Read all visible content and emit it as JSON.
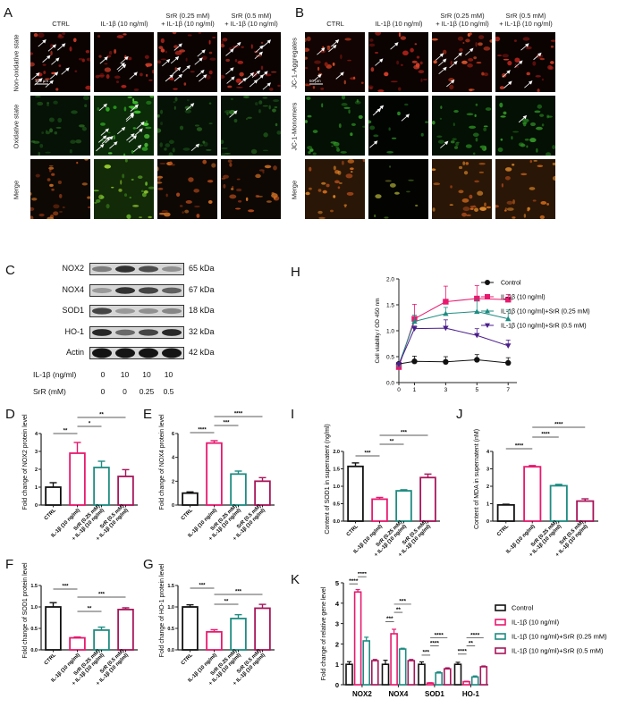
{
  "panels": {
    "A": {
      "label": "A",
      "columns": [
        "CTRL",
        "IL-1β (10 ng/ml)",
        "SrR (0.25 mM)\n+ IL-1β (10 ng/ml)",
        "SrR (0.5 mM)\n+ IL-1β (10 ng/ml)"
      ],
      "rows": [
        "Non-oxidative state",
        "Oxidative state",
        "Merge"
      ],
      "scale_bar": "100 μm"
    },
    "B": {
      "label": "B",
      "columns": [
        "CTRL",
        "IL-1β (10 ng/ml)",
        "SrR (0.25 mM)\n+ IL-1β (10 ng/ml)",
        "SrR (0.5 mM)\n+ IL-1β (10 ng/ml)"
      ],
      "rows": [
        "JC-1-Aggregates",
        "JC-1-Monomers",
        "Merge"
      ],
      "scale_bar": "50 μm"
    },
    "C": {
      "label": "C",
      "proteins": [
        {
          "name": "NOX2",
          "kda": "65 kDa",
          "intensity": [
            0.45,
            0.85,
            0.7,
            0.35
          ]
        },
        {
          "name": "NOX4",
          "kda": "67 kDa",
          "intensity": [
            0.3,
            0.85,
            0.75,
            0.6
          ]
        },
        {
          "name": "SOD1",
          "kda": "18 kDa",
          "intensity": [
            0.75,
            0.3,
            0.35,
            0.4
          ]
        },
        {
          "name": "HO-1",
          "kda": "32 kDa",
          "intensity": [
            0.9,
            0.55,
            0.75,
            0.9
          ]
        },
        {
          "name": "Actin",
          "kda": "42 kDa",
          "intensity": [
            1,
            1,
            1,
            1
          ]
        }
      ],
      "conditions": [
        {
          "label": "IL-1β (ng/ml)",
          "values": [
            "0",
            "10",
            "10",
            "10"
          ]
        },
        {
          "label": "SrR (mM)",
          "values": [
            "0",
            "0",
            "0.25",
            "0.5"
          ]
        }
      ]
    },
    "H": {
      "label": "H"
    },
    "D": {
      "label": "D"
    },
    "E": {
      "label": "E"
    },
    "F": {
      "label": "F"
    },
    "G": {
      "label": "G"
    },
    "I": {
      "label": "I"
    },
    "J": {
      "label": "J"
    },
    "K": {
      "label": "K"
    }
  },
  "colors": {
    "control": "#111111",
    "il1b": "#e8196e",
    "srr025": "#1e8c82",
    "srr05": "#a8155a",
    "srr05_line": "#4b1d8c"
  },
  "bar_categories": [
    "CTRL",
    "IL-1β (10 ng/ml)",
    "SrR (0.25 mM)\n+ IL-1β (10 ng/ml)",
    "SrR (0.5 mM)\n+ IL-1β (10 ng/ml)"
  ],
  "chart_data": [
    {
      "id": "H",
      "type": "line",
      "title": "",
      "xlabel": "",
      "ylabel": "Cell viability / OD 450 nm",
      "x": [
        0,
        1,
        3,
        5,
        7
      ],
      "xticks": [
        0,
        1,
        3,
        5,
        7
      ],
      "ylim": [
        0,
        2.0
      ],
      "yticks": [
        0.0,
        0.5,
        1.0,
        1.5,
        2.0
      ],
      "legend_position": "right",
      "series": [
        {
          "name": "Control",
          "marker": "circle",
          "values": [
            0.36,
            0.41,
            0.4,
            0.44,
            0.38
          ],
          "errors": [
            0.03,
            0.1,
            0.1,
            0.1,
            0.1
          ]
        },
        {
          "name": "IL-1β (10 ng/ml)",
          "marker": "square",
          "values": [
            0.3,
            1.23,
            1.56,
            1.62,
            1.6
          ],
          "errors": [
            0.03,
            0.28,
            0.3,
            0.25,
            0.1
          ]
        },
        {
          "name": "IL-1β (10 ng/ml)+SrR (0.25 mM)",
          "marker": "triangle-up",
          "values": [
            0.35,
            1.18,
            1.33,
            1.37,
            1.23
          ],
          "errors": [
            0.03,
            0.12,
            0.12,
            0.22,
            0.17
          ]
        },
        {
          "name": "IL-1β (10 ng/ml)+SrR (0.5 mM)",
          "marker": "triangle-down",
          "values": [
            0.35,
            1.04,
            1.05,
            0.91,
            0.71
          ],
          "errors": [
            0.03,
            0.05,
            0.16,
            0.13,
            0.11
          ]
        }
      ]
    },
    {
      "id": "D",
      "type": "bar",
      "ylabel": "Fold change of NOX2 protein level",
      "categories": [
        "CTRL",
        "IL-1β (10 ng/ml)",
        "SrR (0.25 mM) + IL-1β (10 ng/ml)",
        "SrR (0.5 mM) + IL-1β (10 ng/ml)"
      ],
      "values": [
        1.0,
        2.9,
        2.1,
        1.6
      ],
      "errors": [
        0.25,
        0.6,
        0.35,
        0.38
      ],
      "ylim": [
        0,
        4
      ],
      "yticks": [
        0,
        1,
        2,
        3,
        4
      ],
      "significance": [
        {
          "from": 0,
          "to": 1,
          "label": "**"
        },
        {
          "from": 1,
          "to": 2,
          "label": "*"
        },
        {
          "from": 1,
          "to": 3,
          "label": "**"
        }
      ]
    },
    {
      "id": "E",
      "type": "bar",
      "ylabel": "Fold change of NOX4 protein level",
      "categories": [
        "CTRL",
        "IL-1β (10 ng/ml)",
        "SrR (0.25 mM) + IL-1β (10 ng/ml)",
        "SrR (0.5 mM) + IL-1β (10 ng/ml)"
      ],
      "values": [
        1.0,
        5.2,
        2.6,
        2.0
      ],
      "errors": [
        0.1,
        0.2,
        0.25,
        0.3
      ],
      "ylim": [
        0,
        6
      ],
      "yticks": [
        0,
        2,
        4,
        6
      ],
      "significance": [
        {
          "from": 0,
          "to": 1,
          "label": "****"
        },
        {
          "from": 1,
          "to": 2,
          "label": "***"
        },
        {
          "from": 1,
          "to": 3,
          "label": "****"
        }
      ]
    },
    {
      "id": "F",
      "type": "bar",
      "ylabel": "Fold change of SOD1 protein level",
      "categories": [
        "CTRL",
        "IL-1β (10 ng/ml)",
        "SrR (0.25 mM) + IL-1β (10 ng/ml)",
        "SrR (0.5 mM) + IL-1β (10 ng/ml)"
      ],
      "values": [
        1.0,
        0.28,
        0.46,
        0.94
      ],
      "errors": [
        0.1,
        0.02,
        0.07,
        0.04
      ],
      "ylim": [
        0,
        1.5
      ],
      "yticks": [
        0.0,
        0.5,
        1.0,
        1.5
      ],
      "significance": [
        {
          "from": 0,
          "to": 1,
          "label": "***"
        },
        {
          "from": 1,
          "to": 2,
          "label": "**"
        },
        {
          "from": 1,
          "to": 3,
          "label": "***"
        }
      ]
    },
    {
      "id": "G",
      "type": "bar",
      "ylabel": "Fold change of HO-1 protein level",
      "categories": [
        "CTRL",
        "IL-1β (10 ng/ml)",
        "SrR (0.25 mM) + IL-1β (10 ng/ml)",
        "SrR (0.5 mM) + IL-1β (10 ng/ml)"
      ],
      "values": [
        1.0,
        0.42,
        0.73,
        0.97
      ],
      "errors": [
        0.05,
        0.05,
        0.09,
        0.09
      ],
      "ylim": [
        0,
        1.5
      ],
      "yticks": [
        0.0,
        0.5,
        1.0,
        1.5
      ],
      "significance": [
        {
          "from": 0,
          "to": 1,
          "label": "***"
        },
        {
          "from": 1,
          "to": 2,
          "label": "**"
        },
        {
          "from": 1,
          "to": 3,
          "label": "***"
        }
      ]
    },
    {
      "id": "I",
      "type": "bar",
      "ylabel": "Content of SOD1 in supernatent (ng/ml)",
      "categories": [
        "CTRL",
        "IL-1β (10 ng/ml)",
        "SrR (0.25 mM) + IL-1β (10 ng/ml)",
        "SrR (0.5 mM) + IL-1β (10 ng/ml)"
      ],
      "values": [
        1.57,
        0.63,
        0.87,
        1.25
      ],
      "errors": [
        0.1,
        0.05,
        0.03,
        0.1
      ],
      "ylim": [
        0,
        2.0
      ],
      "yticks": [
        0.0,
        0.5,
        1.0,
        1.5,
        2.0
      ],
      "significance": [
        {
          "from": 0,
          "to": 1,
          "label": "***"
        },
        {
          "from": 1,
          "to": 2,
          "label": "**"
        },
        {
          "from": 1,
          "to": 3,
          "label": "***"
        }
      ]
    },
    {
      "id": "J",
      "type": "bar",
      "ylabel": "Content of MDA in supernatent (nM)",
      "categories": [
        "CTRL",
        "IL-1β (10 ng/ml)",
        "SrR (0.25 mM) + IL-1β (10 ng/ml)",
        "SrR (0.5 mM) + IL-1β (10 ng/ml)"
      ],
      "values": [
        0.93,
        3.12,
        2.03,
        1.15
      ],
      "errors": [
        0.04,
        0.07,
        0.08,
        0.13
      ],
      "ylim": [
        0,
        4
      ],
      "yticks": [
        0,
        1,
        2,
        3,
        4
      ],
      "significance": [
        {
          "from": 0,
          "to": 1,
          "label": "****"
        },
        {
          "from": 1,
          "to": 2,
          "label": "****"
        },
        {
          "from": 1,
          "to": 3,
          "label": "****"
        }
      ]
    },
    {
      "id": "K",
      "type": "bar",
      "ylabel": "Fold change of relative gene level",
      "categories": [
        "NOX2",
        "NOX4",
        "SOD1",
        "HO-1"
      ],
      "ylim": [
        0,
        5
      ],
      "yticks": [
        0,
        1,
        2,
        3,
        4,
        5
      ],
      "legend_position": "right",
      "series": [
        {
          "name": "Control",
          "values": [
            1.0,
            1.0,
            1.0,
            1.0
          ],
          "errors": [
            0.13,
            0.2,
            0.12,
            0.1
          ]
        },
        {
          "name": "IL-1β (10 ng/ml)",
          "values": [
            4.55,
            2.5,
            0.08,
            0.15
          ],
          "errors": [
            0.12,
            0.22,
            0.02,
            0.02
          ]
        },
        {
          "name": "IL-1β (10 ng/ml)+SrR (0.25 mM)",
          "values": [
            2.15,
            1.75,
            0.58,
            0.38
          ],
          "errors": [
            0.18,
            0.04,
            0.05,
            0.05
          ]
        },
        {
          "name": "IL-1β (10 ng/ml)+SrR (0.5 mM)",
          "values": [
            1.18,
            1.18,
            0.78,
            0.88
          ],
          "errors": [
            0.06,
            0.06,
            0.05,
            0.04
          ]
        }
      ],
      "significance": [
        {
          "group": "NOX2",
          "labels": [
            "****",
            "****",
            "****"
          ]
        },
        {
          "group": "NOX4",
          "labels": [
            "***",
            "**",
            "***"
          ]
        },
        {
          "group": "SOD1",
          "labels": [
            "***",
            "****",
            "****"
          ]
        },
        {
          "group": "HO-1",
          "labels": [
            "****",
            "**",
            "****"
          ]
        }
      ]
    }
  ]
}
